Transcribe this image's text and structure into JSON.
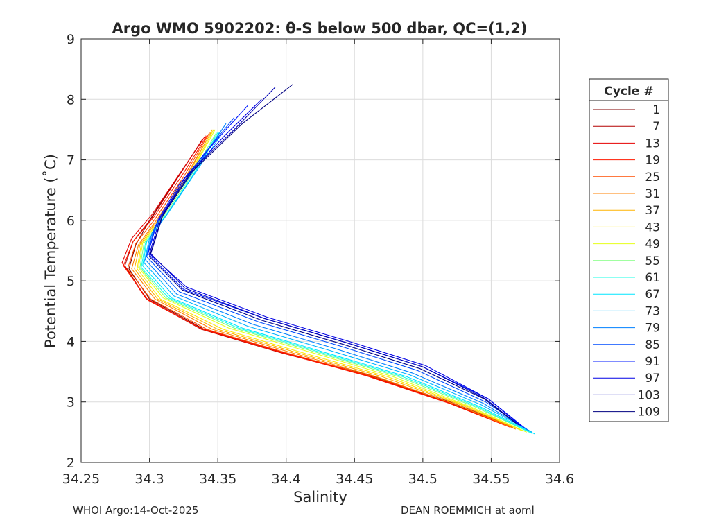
{
  "chart_data": {
    "type": "line",
    "title": "Argo WMO 5902202: θ-S below 500 dbar,  QC=(1,2)",
    "xlabel": "Salinity",
    "ylabel": "Potential Temperature (˚C)",
    "xlim": [
      34.25,
      34.6
    ],
    "ylim": [
      2,
      9
    ],
    "xticks": [
      "34.25",
      "34.3",
      "34.35",
      "34.4",
      "34.45",
      "34.5",
      "34.55",
      "34.6"
    ],
    "yticks": [
      "2",
      "3",
      "4",
      "5",
      "6",
      "7",
      "8",
      "9"
    ],
    "grid": true,
    "legend": {
      "title": "Cycle #",
      "position": "right",
      "entries": [
        {
          "label": "1",
          "color": "#800000"
        },
        {
          "label": "7",
          "color": "#b30000"
        },
        {
          "label": "13",
          "color": "#e60000"
        },
        {
          "label": "19",
          "color": "#ff1a00"
        },
        {
          "label": "25",
          "color": "#ff4d00"
        },
        {
          "label": "31",
          "color": "#ff8000"
        },
        {
          "label": "37",
          "color": "#ffb300"
        },
        {
          "label": "43",
          "color": "#ffe600"
        },
        {
          "label": "49",
          "color": "#e6ff1a"
        },
        {
          "label": "55",
          "color": "#80ff80"
        },
        {
          "label": "61",
          "color": "#1affe6"
        },
        {
          "label": "67",
          "color": "#00e6ff"
        },
        {
          "label": "73",
          "color": "#00b3ff"
        },
        {
          "label": "79",
          "color": "#0080ff"
        },
        {
          "label": "85",
          "color": "#004dff"
        },
        {
          "label": "91",
          "color": "#001aff"
        },
        {
          "label": "97",
          "color": "#0000e6"
        },
        {
          "label": "103",
          "color": "#0000b3"
        },
        {
          "label": "109",
          "color": "#000080"
        }
      ]
    },
    "series": [
      {
        "name": "1",
        "color": "#800000",
        "x": [
          34.565,
          34.52,
          34.46,
          34.4,
          34.34,
          34.3,
          34.285,
          34.29,
          34.3,
          34.32,
          34.338
        ],
        "y": [
          2.6,
          3.0,
          3.45,
          3.8,
          4.2,
          4.7,
          5.2,
          5.6,
          6.0,
          6.7,
          7.3
        ]
      },
      {
        "name": "7",
        "color": "#b30000",
        "x": [
          34.563,
          34.518,
          34.458,
          34.398,
          34.338,
          34.298,
          34.282,
          34.288,
          34.302,
          34.322,
          34.339
        ],
        "y": [
          2.6,
          3.0,
          3.45,
          3.8,
          4.2,
          4.7,
          5.25,
          5.65,
          6.05,
          6.75,
          7.35
        ]
      },
      {
        "name": "13",
        "color": "#e60000",
        "x": [
          34.562,
          34.517,
          34.457,
          34.397,
          34.337,
          34.297,
          34.28,
          34.287,
          34.302,
          34.323,
          34.341
        ],
        "y": [
          2.6,
          3.0,
          3.45,
          3.82,
          4.22,
          4.72,
          5.3,
          5.7,
          6.1,
          6.8,
          7.4
        ]
      },
      {
        "name": "19",
        "color": "#ff1a00",
        "x": [
          34.564,
          34.519,
          34.459,
          34.399,
          34.339,
          34.299,
          34.281,
          34.288,
          34.303,
          34.324,
          34.342
        ],
        "y": [
          2.58,
          2.98,
          3.43,
          3.8,
          4.2,
          4.68,
          5.25,
          5.65,
          6.05,
          6.75,
          7.4
        ]
      },
      {
        "name": "25",
        "color": "#ff4d00",
        "x": [
          34.566,
          34.522,
          34.462,
          34.402,
          34.342,
          34.301,
          34.284,
          34.29,
          34.304,
          34.325,
          34.344
        ],
        "y": [
          2.58,
          2.98,
          3.43,
          3.8,
          4.2,
          4.7,
          5.2,
          5.62,
          6.02,
          6.72,
          7.45
        ]
      },
      {
        "name": "31",
        "color": "#ff8000",
        "x": [
          34.568,
          34.525,
          34.466,
          34.406,
          34.346,
          34.304,
          34.287,
          34.292,
          34.305,
          34.326,
          34.345
        ],
        "y": [
          2.55,
          2.95,
          3.42,
          3.8,
          4.2,
          4.7,
          5.2,
          5.6,
          6.0,
          6.7,
          7.45
        ]
      },
      {
        "name": "37",
        "color": "#ffb300",
        "x": [
          34.57,
          34.528,
          34.47,
          34.41,
          34.35,
          34.306,
          34.289,
          34.293,
          34.306,
          34.327,
          34.346
        ],
        "y": [
          2.55,
          2.95,
          3.42,
          3.8,
          4.2,
          4.7,
          5.2,
          5.6,
          6.0,
          6.7,
          7.5
        ]
      },
      {
        "name": "43",
        "color": "#ffe600",
        "x": [
          34.573,
          34.532,
          34.474,
          34.414,
          34.354,
          34.308,
          34.291,
          34.294,
          34.307,
          34.328,
          34.347
        ],
        "y": [
          2.52,
          2.93,
          3.42,
          3.8,
          4.2,
          4.7,
          5.2,
          5.6,
          6.0,
          6.7,
          7.5
        ]
      },
      {
        "name": "49",
        "color": "#e6ff1a",
        "x": [
          34.576,
          34.535,
          34.478,
          34.418,
          34.358,
          34.31,
          34.292,
          34.295,
          34.308,
          34.329,
          34.348
        ],
        "y": [
          2.5,
          2.92,
          3.42,
          3.82,
          4.22,
          4.72,
          5.22,
          5.62,
          6.02,
          6.72,
          7.5
        ]
      },
      {
        "name": "55",
        "color": "#80ff80",
        "x": [
          34.578,
          34.538,
          34.482,
          34.422,
          34.362,
          34.312,
          34.293,
          34.296,
          34.309,
          34.33,
          34.349
        ],
        "y": [
          2.5,
          2.92,
          3.42,
          3.82,
          4.22,
          4.72,
          5.22,
          5.62,
          6.02,
          6.72,
          7.45
        ]
      },
      {
        "name": "61",
        "color": "#1affe6",
        "x": [
          34.58,
          34.54,
          34.485,
          34.425,
          34.365,
          34.314,
          34.294,
          34.297,
          34.31,
          34.331,
          34.35
        ],
        "y": [
          2.48,
          2.92,
          3.42,
          3.82,
          4.22,
          4.72,
          5.22,
          5.62,
          6.02,
          6.72,
          7.45
        ]
      },
      {
        "name": "67",
        "color": "#00e6ff",
        "x": [
          34.582,
          34.542,
          34.488,
          34.428,
          34.368,
          34.316,
          34.295,
          34.298,
          34.311,
          34.332,
          34.351
        ],
        "y": [
          2.47,
          2.92,
          3.42,
          3.82,
          4.22,
          4.72,
          5.25,
          5.65,
          6.05,
          6.75,
          7.45
        ]
      },
      {
        "name": "73",
        "color": "#00b3ff",
        "x": [
          34.58,
          34.543,
          34.49,
          34.432,
          34.372,
          34.318,
          34.296,
          34.3,
          34.313,
          34.334,
          34.352
        ],
        "y": [
          2.5,
          2.95,
          3.45,
          3.85,
          4.25,
          4.75,
          5.3,
          5.7,
          6.1,
          6.8,
          7.4
        ]
      },
      {
        "name": "79",
        "color": "#0080ff",
        "x": [
          34.578,
          34.544,
          34.492,
          34.436,
          34.376,
          34.32,
          34.297,
          34.302,
          34.316,
          34.338,
          34.356
        ],
        "y": [
          2.52,
          2.98,
          3.48,
          3.88,
          4.28,
          4.78,
          5.35,
          5.8,
          6.3,
          7.0,
          7.6
        ]
      },
      {
        "name": "85",
        "color": "#004dff",
        "x": [
          34.576,
          34.546,
          34.496,
          34.44,
          34.38,
          34.322,
          34.298,
          34.304,
          34.318,
          34.34,
          34.362
        ],
        "y": [
          2.55,
          3.0,
          3.52,
          3.92,
          4.32,
          4.82,
          5.4,
          5.9,
          6.4,
          7.1,
          7.7
        ]
      },
      {
        "name": "91",
        "color": "#001aff",
        "x": [
          34.574,
          34.548,
          34.5,
          34.444,
          34.384,
          34.325,
          34.299,
          34.306,
          34.322,
          34.348,
          34.372
        ],
        "y": [
          2.58,
          3.05,
          3.58,
          3.98,
          4.38,
          4.86,
          5.45,
          6.0,
          6.6,
          7.3,
          7.9
        ]
      },
      {
        "name": "97",
        "color": "#0000e6",
        "x": [
          34.572,
          34.548,
          34.502,
          34.446,
          34.386,
          34.327,
          34.3,
          34.308,
          34.326,
          34.355,
          34.382
        ],
        "y": [
          2.6,
          3.05,
          3.6,
          4.0,
          4.4,
          4.9,
          5.45,
          6.05,
          6.7,
          7.4,
          8.0
        ]
      },
      {
        "name": "103",
        "color": "#0000b3",
        "x": [
          34.57,
          34.546,
          34.5,
          34.444,
          34.384,
          34.326,
          34.301,
          34.31,
          34.33,
          34.362,
          34.392
        ],
        "y": [
          2.62,
          3.05,
          3.58,
          3.98,
          4.38,
          4.88,
          5.45,
          6.1,
          6.8,
          7.5,
          8.2
        ]
      },
      {
        "name": "109",
        "color": "#000080",
        "x": [
          34.568,
          34.545,
          34.498,
          34.442,
          34.382,
          34.324,
          34.3,
          34.309,
          34.331,
          34.368,
          34.405
        ],
        "y": [
          2.65,
          3.05,
          3.55,
          3.95,
          4.35,
          4.85,
          5.4,
          6.05,
          6.8,
          7.6,
          8.25
        ]
      }
    ]
  },
  "footer": {
    "left": "WHOI Argo:14-Oct-2025",
    "right": "DEAN ROEMMICH at aoml"
  }
}
